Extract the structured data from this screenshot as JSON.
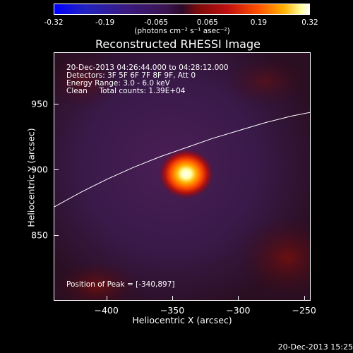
{
  "colorbar": {
    "ticks": [
      "-0.32",
      "-0.19",
      "-0.065",
      "0.065",
      "0.19",
      "0.32"
    ],
    "units": "(photons cm⁻² s⁻¹ asec⁻²)"
  },
  "info": {
    "time_range": "20-Dec-2013 04:26:44.000 to 04:28:12.000",
    "detectors": "Detectors: 3F 5F 6F 7F 8F 9F, Att 0",
    "energy": "Energy Range: 3.0 - 6.0 keV",
    "clean": "Clean     Total counts: 1.39E+04",
    "peak": "Position of Peak = [-340,897]"
  },
  "timestamp": "20-Dec-2013 15:25",
  "chart_data": {
    "type": "heatmap",
    "title": "Reconstructed RHESSI Image",
    "xlabel": "Heliocentric X (arcsec)",
    "ylabel": "Heliocentric Y (arcsec)",
    "xlim": [
      -440,
      -245
    ],
    "ylim": [
      800,
      989
    ],
    "xticks": [
      -400,
      -350,
      -300,
      -250
    ],
    "yticks": [
      850,
      900,
      950
    ],
    "colorbar_range": [
      -0.32,
      0.32
    ],
    "peak_position": [
      -340,
      897
    ],
    "limb_curve": [
      [
        -440,
        872
      ],
      [
        -420,
        883
      ],
      [
        -400,
        893
      ],
      [
        -380,
        902
      ],
      [
        -360,
        910
      ],
      [
        -340,
        917
      ],
      [
        -320,
        924
      ],
      [
        -300,
        930
      ],
      [
        -280,
        936
      ],
      [
        -260,
        941
      ],
      [
        -245,
        944
      ]
    ]
  }
}
